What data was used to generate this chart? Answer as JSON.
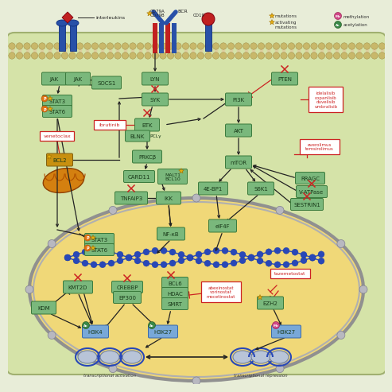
{
  "bg_color": "#e8edd8",
  "cytoplasm_color": "#d5e3a8",
  "nucleus_color": "#f0d878",
  "node_fill": "#7ab87c",
  "node_edge": "#3a7a3c",
  "drug_edge": "#cc2222",
  "arrow_color": "#222222",
  "red_color": "#cc2222",
  "membrane_head": "#c8b86a",
  "membrane_tail": "#ddd0a0",
  "receptor_blue": "#2850a8",
  "receptor_red": "#c02020",
  "dna_color": "#2848b8",
  "nuc_disk_color": "#b8c4d8",
  "h3k_fill": "#78a8d8",
  "h3k_edge": "#3868a8",
  "mito_color": "#d48010",
  "bcl2_fill": "#c89010",
  "pink_methyl": "#d04888",
  "green_acetyl": "#3a8848",
  "orange_phospho": "#e07010",
  "star_color": "#e8b010"
}
